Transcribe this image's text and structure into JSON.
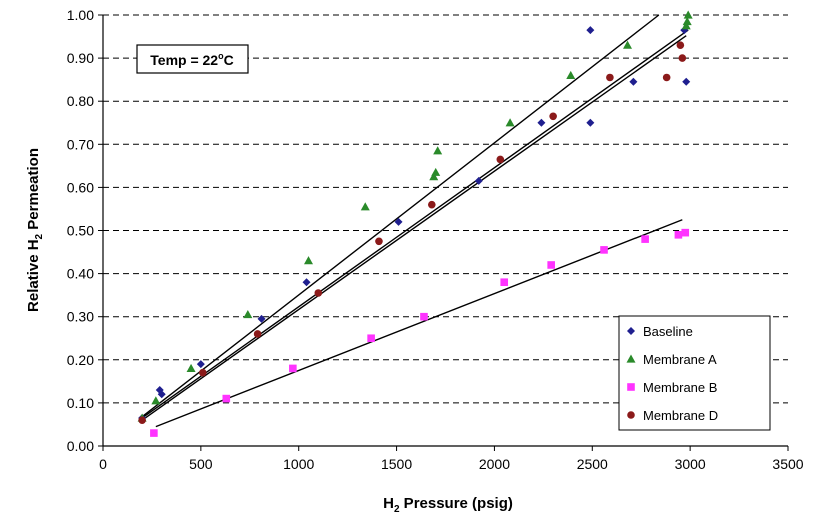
{
  "chart_data": {
    "type": "scatter",
    "title": "",
    "xlabel_main": "H",
    "xlabel_sub": "2",
    "xlabel_rest": " Pressure (psig)",
    "ylabel_main": "Relative H",
    "ylabel_sub": "2",
    "ylabel_rest": " Permeation",
    "xlim": [
      0,
      3500
    ],
    "ylim": [
      0,
      1.0
    ],
    "xticks": [
      "0",
      "500",
      "1000",
      "1500",
      "2000",
      "2500",
      "3000",
      "3500"
    ],
    "yticks": [
      "0.00",
      "0.10",
      "0.20",
      "0.30",
      "0.40",
      "0.50",
      "0.60",
      "0.70",
      "0.80",
      "0.90",
      "1.00"
    ],
    "grid": "horizontal-dashed",
    "legend_position": "bottom-right",
    "annotation": {
      "text_main": "Temp = 22",
      "text_sup": "o",
      "text_rest": "C"
    },
    "series": [
      {
        "name": "Baseline",
        "marker": "diamond",
        "color": "#1f1f8f",
        "points": [
          [
            200,
            0.065
          ],
          [
            290,
            0.13
          ],
          [
            300,
            0.12
          ],
          [
            500,
            0.19
          ],
          [
            810,
            0.295
          ],
          [
            1040,
            0.38
          ],
          [
            1510,
            0.52
          ],
          [
            1920,
            0.615
          ],
          [
            2240,
            0.75
          ],
          [
            2490,
            0.965
          ],
          [
            2490,
            0.75
          ],
          [
            2710,
            0.845
          ],
          [
            2970,
            0.965
          ],
          [
            2980,
            0.845
          ]
        ]
      },
      {
        "name": "Membrane A",
        "marker": "triangle",
        "color": "#2a8a2a",
        "points": [
          [
            200,
            0.065
          ],
          [
            270,
            0.105
          ],
          [
            450,
            0.18
          ],
          [
            740,
            0.305
          ],
          [
            1050,
            0.43
          ],
          [
            1340,
            0.555
          ],
          [
            1690,
            0.625
          ],
          [
            1700,
            0.635
          ],
          [
            1710,
            0.685
          ],
          [
            2080,
            0.75
          ],
          [
            2390,
            0.86
          ],
          [
            2680,
            0.93
          ],
          [
            2980,
            0.975
          ],
          [
            2985,
            0.985
          ],
          [
            2990,
            1.0
          ]
        ]
      },
      {
        "name": "Membrane B",
        "marker": "square",
        "color": "#ff33ff",
        "points": [
          [
            260,
            0.03
          ],
          [
            630,
            0.11
          ],
          [
            970,
            0.18
          ],
          [
            1370,
            0.25
          ],
          [
            1640,
            0.3
          ],
          [
            2050,
            0.38
          ],
          [
            2290,
            0.42
          ],
          [
            2560,
            0.455
          ],
          [
            2770,
            0.48
          ],
          [
            2940,
            0.49
          ],
          [
            2975,
            0.495
          ]
        ]
      },
      {
        "name": "Membrane D",
        "marker": "circle",
        "color": "#8b1a1a",
        "points": [
          [
            200,
            0.06
          ],
          [
            510,
            0.17
          ],
          [
            790,
            0.26
          ],
          [
            1100,
            0.355
          ],
          [
            1410,
            0.475
          ],
          [
            1680,
            0.56
          ],
          [
            2030,
            0.665
          ],
          [
            2300,
            0.765
          ],
          [
            2590,
            0.855
          ],
          [
            2880,
            0.855
          ],
          [
            2950,
            0.93
          ],
          [
            2960,
            0.9
          ]
        ]
      }
    ],
    "trendlines": [
      {
        "x": [
          200,
          2840
        ],
        "y": [
          0.068,
          1.0
        ]
      },
      {
        "x": [
          200,
          2990
        ],
        "y": [
          0.065,
          0.965
        ]
      },
      {
        "x": [
          200,
          2980
        ],
        "y": [
          0.06,
          0.952
        ]
      },
      {
        "x": [
          270,
          2960
        ],
        "y": [
          0.045,
          0.525
        ]
      }
    ],
    "colors": {
      "trendline": "#000000",
      "grid": "#000000",
      "axis": "#000000"
    }
  }
}
